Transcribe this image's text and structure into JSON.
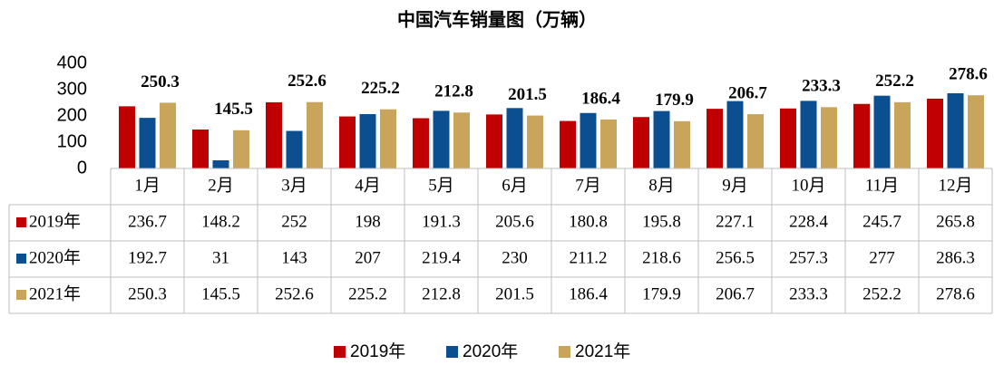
{
  "chart_data": {
    "type": "bar",
    "title": "中国汽车销量图（万辆）",
    "categories": [
      "1月",
      "2月",
      "3月",
      "4月",
      "5月",
      "6月",
      "7月",
      "8月",
      "9月",
      "10月",
      "11月",
      "12月"
    ],
    "series": [
      {
        "name": "2019年",
        "color": "#c00000",
        "values": [
          236.7,
          148.2,
          252,
          198,
          191.3,
          205.6,
          180.8,
          195.8,
          227.1,
          228.4,
          245.7,
          265.8
        ]
      },
      {
        "name": "2020年",
        "color": "#0b4f91",
        "values": [
          192.7,
          31,
          143,
          207,
          219.4,
          230,
          211.2,
          218.6,
          256.5,
          257.3,
          277,
          286.3
        ]
      },
      {
        "name": "2021年",
        "color": "#c9a55c",
        "values": [
          250.3,
          145.5,
          252.6,
          225.2,
          212.8,
          201.5,
          186.4,
          179.9,
          206.7,
          233.3,
          252.2,
          278.6
        ]
      }
    ],
    "ylim": [
      0,
      400
    ],
    "yticks": [
      0,
      100,
      200,
      300,
      400
    ],
    "grid": false,
    "legend": "bottom"
  }
}
